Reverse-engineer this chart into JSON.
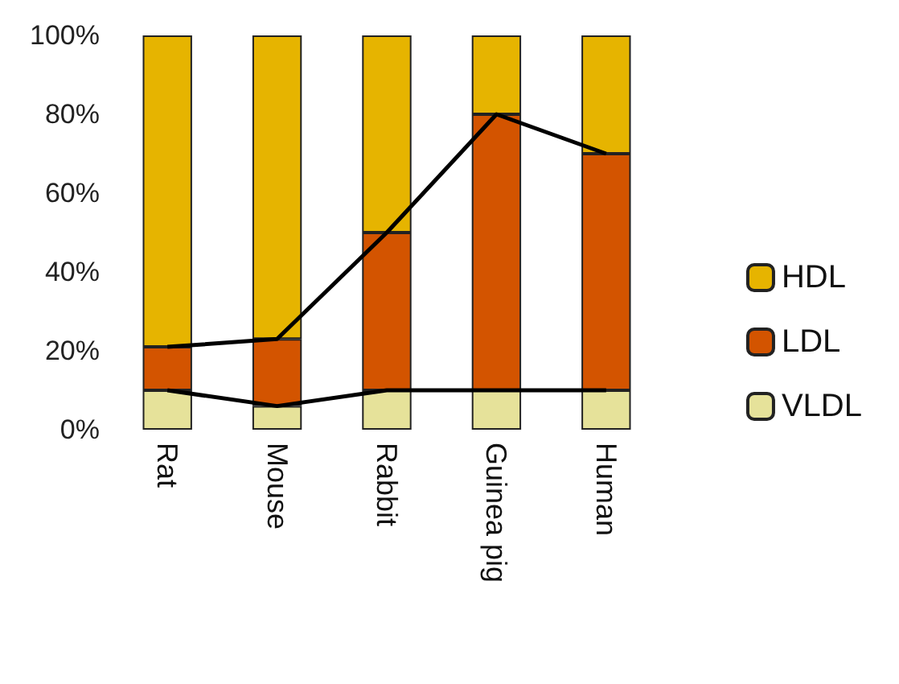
{
  "chart_data": {
    "type": "bar",
    "stacked": true,
    "categories": [
      "Rat",
      "Mouse",
      "Rabbit",
      "Guinea pig",
      "Human"
    ],
    "series": [
      {
        "name": "VLDL",
        "color": "#e6e29a",
        "values": [
          10,
          6,
          10,
          10,
          10
        ]
      },
      {
        "name": "LDL",
        "color": "#d35400",
        "values": [
          11,
          17,
          40,
          70,
          60
        ]
      },
      {
        "name": "HDL",
        "color": "#e6b400",
        "values": [
          79,
          77,
          50,
          20,
          30
        ]
      },
      {
        "type": "line",
        "color": "#000000",
        "values": [
          10,
          6,
          10,
          10,
          10
        ]
      },
      {
        "type": "line",
        "color": "#000000",
        "values": [
          21,
          23,
          50,
          80,
          70
        ]
      }
    ],
    "ylim": [
      0,
      100
    ],
    "yticks": [
      {
        "value": 0,
        "label": "0%"
      },
      {
        "value": 20,
        "label": "20%"
      },
      {
        "value": 40,
        "label": "40%"
      },
      {
        "value": 60,
        "label": "60%"
      },
      {
        "value": 80,
        "label": "80%"
      },
      {
        "value": 100,
        "label": "100%"
      }
    ],
    "grid": false,
    "legend": "right",
    "marker": "none"
  }
}
